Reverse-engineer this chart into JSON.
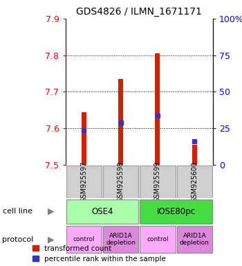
{
  "title": "GDS4826 / ILMN_1671171",
  "samples": [
    "GSM925597",
    "GSM925598",
    "GSM925599",
    "GSM925600"
  ],
  "transformed_counts": [
    7.645,
    7.735,
    7.805,
    7.555
  ],
  "percentile_ranks": [
    7.595,
    7.615,
    7.635,
    7.565
  ],
  "y_min": 7.5,
  "y_max": 7.9,
  "y_ticks": [
    7.5,
    7.6,
    7.7,
    7.8,
    7.9
  ],
  "y2_ticks": [
    0,
    25,
    50,
    75,
    100
  ],
  "y2_labels": [
    "0",
    "25",
    "50",
    "75",
    "100%"
  ],
  "bar_color": "#cc2200",
  "blue_color": "#3333cc",
  "cell_line_groups": [
    {
      "label": "OSE4",
      "cols": [
        0,
        1
      ],
      "color": "#aaffaa"
    },
    {
      "label": "IOSE80pc",
      "cols": [
        2,
        3
      ],
      "color": "#44dd44"
    }
  ],
  "protocol_groups": [
    {
      "label": "control",
      "cols": [
        0
      ],
      "color": "#ffaaff"
    },
    {
      "label": "ARID1A\ndepletion",
      "cols": [
        1
      ],
      "color": "#dd88dd"
    },
    {
      "label": "control",
      "cols": [
        2
      ],
      "color": "#ffaaff"
    },
    {
      "label": "ARID1A\ndepletion",
      "cols": [
        3
      ],
      "color": "#dd88dd"
    }
  ],
  "legend_bar_label": "transformed count",
  "legend_blue_label": "percentile rank within the sample",
  "cell_line_label": "cell line",
  "protocol_label": "protocol",
  "bar_width": 0.13,
  "gsm_bg": "#c8c8c8",
  "gsm_box": "#d0d0d0"
}
